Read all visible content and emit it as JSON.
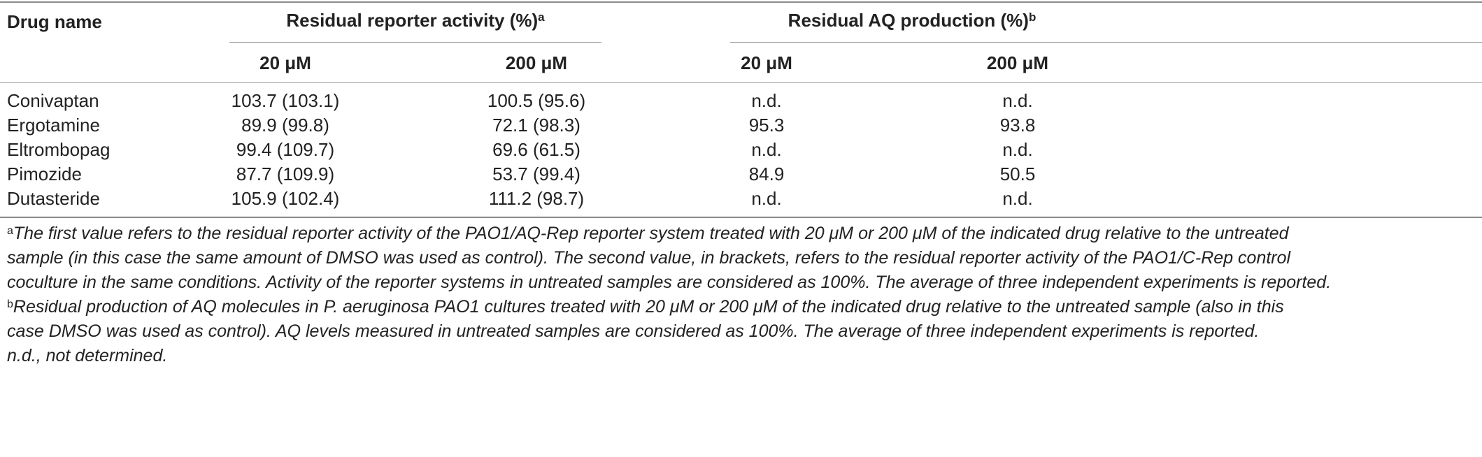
{
  "table": {
    "col_drug": "Drug name",
    "group_reporter": {
      "label": "Residual reporter activity (%)",
      "note_mark": "a"
    },
    "group_aq": {
      "label": "Residual AQ production (%)",
      "note_mark": "b"
    },
    "subcols": [
      "20 μM",
      "200 μM",
      "20 μM",
      "200 μM"
    ],
    "rows": [
      {
        "drug": "Conivaptan",
        "rep20": "103.7 (103.1)",
        "rep200": "100.5 (95.6)",
        "aq20": "n.d.",
        "aq200": "n.d."
      },
      {
        "drug": "Ergotamine",
        "rep20": "89.9 (99.8)",
        "rep200": "72.1 (98.3)",
        "aq20": "95.3",
        "aq200": "93.8"
      },
      {
        "drug": "Eltrombopag",
        "rep20": "99.4 (109.7)",
        "rep200": "69.6 (61.5)",
        "aq20": "n.d.",
        "aq200": "n.d."
      },
      {
        "drug": "Pimozide",
        "rep20": "87.7 (109.9)",
        "rep200": "53.7 (99.4)",
        "aq20": "84.9",
        "aq200": "50.5"
      },
      {
        "drug": "Dutasteride",
        "rep20": "105.9 (102.4)",
        "rep200": "111.2 (98.7)",
        "aq20": "n.d.",
        "aq200": "n.d."
      }
    ]
  },
  "footnotes": {
    "a_mark": "a",
    "a_lines": [
      "The first value refers to the residual reporter activity of the PAO1/AQ-Rep reporter system treated with 20 μM or 200 μM of the indicated drug relative to the untreated",
      "sample (in this case the same amount of DMSO was used as control). The second value, in brackets, refers to the residual reporter activity of the PAO1/C-Rep control",
      "coculture in the same conditions. Activity of the reporter systems in untreated samples are considered as 100%. The average of three independent experiments is reported."
    ],
    "b_mark": "b",
    "b_lines": [
      "Residual production of AQ molecules in P. aeruginosa PAO1 cultures treated with 20 μM or 200 μM of the indicated drug relative to the untreated sample (also in this",
      "case DMSO was used as control). AQ levels measured in untreated samples are considered as 100%. The average of three independent experiments is reported."
    ],
    "nd": "n.d., not determined."
  }
}
